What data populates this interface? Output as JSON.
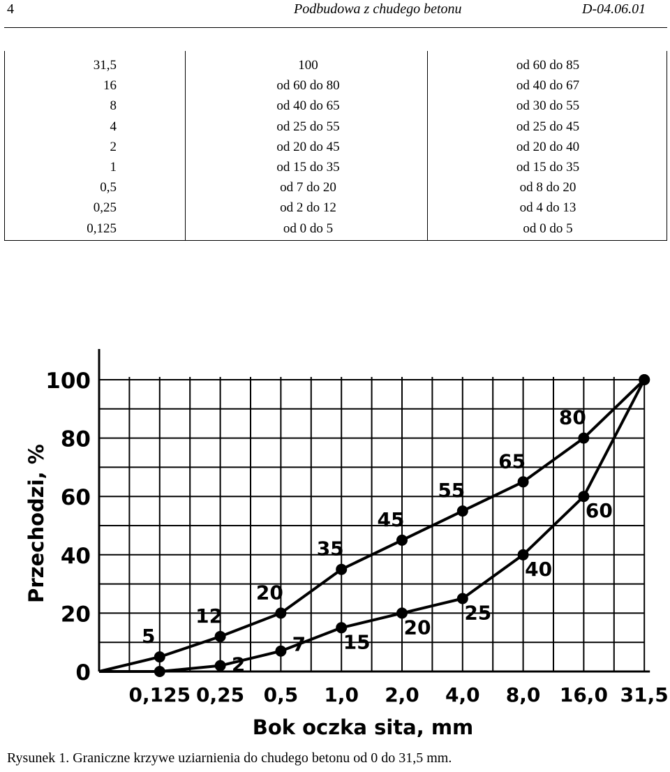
{
  "header": {
    "page_number": "4",
    "title": "Podbudowa z chudego betonu",
    "code": "D-04.06.01"
  },
  "table": {
    "columns": [
      [
        "31,5",
        "16",
        "8",
        "4",
        "2",
        "1",
        "0,5",
        "0,25",
        "0,125"
      ],
      [
        "100",
        "od 60 do 80",
        "od 40 do 65",
        "od 25 do 55",
        "od 20 do 45",
        "od 15 do 35",
        "od 7 do 20",
        "od 2 do 12",
        "od 0 do 5"
      ],
      [
        "od 60 do 85",
        "od 40 do 67",
        "od 30 do 55",
        "od 25 do 45",
        "od 20 do 40",
        "od 15 do 35",
        "od 8 do 20",
        "od 4 do 13",
        "od 0 do 5"
      ]
    ]
  },
  "chart_data": {
    "type": "line",
    "xlabel": "Bok oczka sita, mm",
    "ylabel": "Przechodzi, %",
    "x": [
      "0",
      "0,125",
      "0,25",
      "0,5",
      "1,0",
      "2,0",
      "4,0",
      "8,0",
      "16,0",
      "31,5"
    ],
    "y_ticks": [
      "0",
      "20",
      "40",
      "60",
      "80",
      "100"
    ],
    "ylim": [
      0,
      100
    ],
    "grid": true,
    "series": [
      {
        "values": [
          0,
          5,
          12,
          20,
          35,
          45,
          55,
          65,
          80,
          100
        ],
        "labels": [
          "",
          "5",
          "12",
          "20",
          "35",
          "45",
          "55",
          "65",
          "80",
          ""
        ]
      },
      {
        "values": [
          0,
          0,
          2,
          7,
          15,
          20,
          25,
          40,
          60,
          100
        ],
        "labels": [
          "",
          "",
          "2",
          "7",
          "15",
          "20",
          "25",
          "40",
          "60",
          ""
        ]
      }
    ]
  },
  "caption": "Rysunek 1. Graniczne krzywe uziarnienia do chudego betonu od 0 do 31,5 mm."
}
